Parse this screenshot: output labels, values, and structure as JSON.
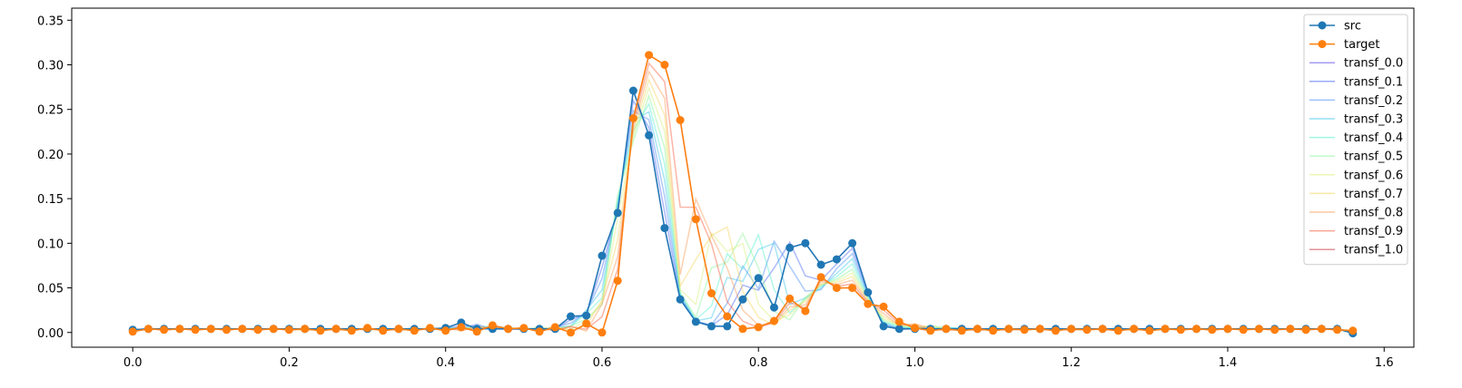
{
  "chart_data": {
    "type": "line",
    "title": "",
    "xlabel": "",
    "ylabel": "",
    "xlim": [
      -0.078,
      1.638
    ],
    "ylim": [
      -0.0165,
      0.3635
    ],
    "xticks": [
      "0.0",
      "0.2",
      "0.4",
      "0.6",
      "0.8",
      "1.0",
      "1.2",
      "1.4",
      "1.6"
    ],
    "yticks": [
      "0.00",
      "0.05",
      "0.10",
      "0.15",
      "0.20",
      "0.25",
      "0.30",
      "0.35"
    ],
    "grid": false,
    "legend_position": "top-right",
    "x": [
      0.0,
      0.02,
      0.04,
      0.06,
      0.08,
      0.1,
      0.12,
      0.14,
      0.16,
      0.18,
      0.2,
      0.22,
      0.24,
      0.26,
      0.28,
      0.3,
      0.32,
      0.34,
      0.36,
      0.38,
      0.4,
      0.42,
      0.44,
      0.46,
      0.48,
      0.5,
      0.52,
      0.54,
      0.56,
      0.58,
      0.6,
      0.62,
      0.64,
      0.66,
      0.68,
      0.7,
      0.72,
      0.74,
      0.76,
      0.78,
      0.8,
      0.82,
      0.84,
      0.86,
      0.88,
      0.9,
      0.92,
      0.94,
      0.96,
      0.98,
      1.0,
      1.02,
      1.04,
      1.06,
      1.08,
      1.1,
      1.12,
      1.14,
      1.16,
      1.18,
      1.2,
      1.22,
      1.24,
      1.26,
      1.28,
      1.3,
      1.32,
      1.34,
      1.36,
      1.38,
      1.4,
      1.42,
      1.44,
      1.46,
      1.48,
      1.5,
      1.52,
      1.54,
      1.56
    ],
    "src": [
      0.003,
      0.004,
      0.004,
      0.004,
      0.004,
      0.004,
      0.004,
      0.004,
      0.004,
      0.004,
      0.004,
      0.004,
      0.004,
      0.004,
      0.004,
      0.004,
      0.004,
      0.004,
      0.004,
      0.004,
      0.005,
      0.011,
      0.004,
      0.004,
      0.004,
      0.004,
      0.004,
      0.004,
      0.018,
      0.019,
      0.086,
      0.134,
      0.271,
      0.221,
      0.117,
      0.037,
      0.012,
      0.007,
      0.007,
      0.037,
      0.061,
      0.028,
      0.095,
      0.1,
      0.076,
      0.082,
      0.1,
      0.045,
      0.007,
      0.004,
      0.004,
      0.004,
      0.004,
      0.004,
      0.004,
      0.004,
      0.004,
      0.004,
      0.004,
      0.004,
      0.004,
      0.004,
      0.004,
      0.004,
      0.004,
      0.004,
      0.004,
      0.004,
      0.004,
      0.004,
      0.004,
      0.004,
      0.004,
      0.004,
      0.004,
      0.004,
      0.004,
      0.004,
      -0.001
    ],
    "target": [
      0.001,
      0.004,
      0.003,
      0.004,
      0.003,
      0.004,
      0.003,
      0.004,
      0.003,
      0.004,
      0.003,
      0.004,
      0.002,
      0.004,
      0.002,
      0.005,
      0.002,
      0.004,
      0.002,
      0.005,
      0.002,
      0.006,
      0.001,
      0.008,
      0.004,
      0.005,
      0.001,
      0.006,
      0.0,
      0.01,
      0.0,
      0.058,
      0.24,
      0.311,
      0.3,
      0.238,
      0.127,
      0.044,
      0.018,
      0.004,
      0.006,
      0.013,
      0.038,
      0.024,
      0.062,
      0.05,
      0.05,
      0.032,
      0.029,
      0.012,
      0.005,
      0.002,
      0.004,
      0.002,
      0.004,
      0.002,
      0.004,
      0.003,
      0.004,
      0.002,
      0.004,
      0.003,
      0.004,
      0.002,
      0.004,
      0.002,
      0.004,
      0.003,
      0.004,
      0.003,
      0.004,
      0.003,
      0.004,
      0.003,
      0.004,
      0.003,
      0.004,
      0.003,
      0.002
    ],
    "series": [
      {
        "name": "src",
        "role": "marker-line",
        "color": "#1f77b4"
      },
      {
        "name": "target",
        "role": "marker-line",
        "color": "#ff7f0e"
      },
      {
        "name": "transf_0.0",
        "role": "transport",
        "t": 0.0,
        "color": "#5d49e6"
      },
      {
        "name": "transf_0.1",
        "role": "transport",
        "t": 0.1,
        "color": "#4464f5"
      },
      {
        "name": "transf_0.2",
        "role": "transport",
        "t": 0.2,
        "color": "#4a8cf5"
      },
      {
        "name": "transf_0.3",
        "role": "transport",
        "t": 0.3,
        "color": "#3dc6ee"
      },
      {
        "name": "transf_0.4",
        "role": "transport",
        "t": 0.4,
        "color": "#56f0d0"
      },
      {
        "name": "transf_0.5",
        "role": "transport",
        "t": 0.5,
        "color": "#8cf59a"
      },
      {
        "name": "transf_0.6",
        "role": "transport",
        "t": 0.6,
        "color": "#d8f07a"
      },
      {
        "name": "transf_0.7",
        "role": "transport",
        "t": 0.7,
        "color": "#f5d45a"
      },
      {
        "name": "transf_0.8",
        "role": "transport",
        "t": 0.8,
        "color": "#f89a52"
      },
      {
        "name": "transf_0.9",
        "role": "transport",
        "t": 0.9,
        "color": "#f45a3c"
      },
      {
        "name": "transf_1.0",
        "role": "transport",
        "t": 1.0,
        "color": "#c8383c"
      }
    ]
  }
}
